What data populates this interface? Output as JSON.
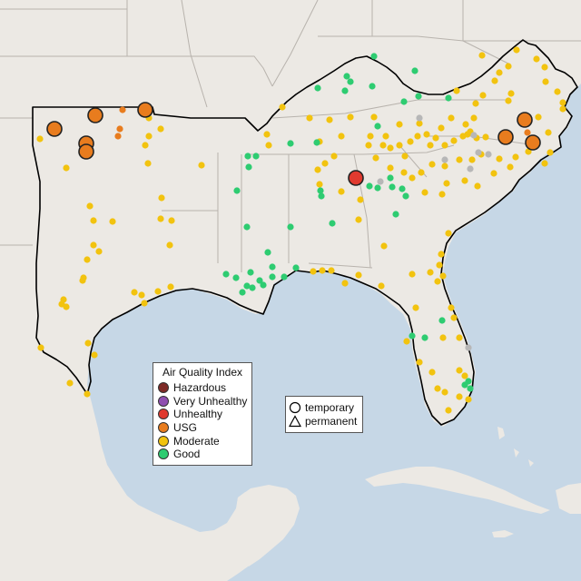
{
  "legend": {
    "title": "Air Quality Index",
    "categories": [
      {
        "label": "Hazardous",
        "color": "#7e2a26"
      },
      {
        "label": "Very Unhealthy",
        "color": "#8f4fb0"
      },
      {
        "label": "Unhealthy",
        "color": "#e03a2f"
      },
      {
        "label": "USG",
        "color": "#e87c1e"
      },
      {
        "label": "Moderate",
        "color": "#f2c30f"
      },
      {
        "label": "Good",
        "color": "#2ecc71"
      }
    ]
  },
  "shape_legend": {
    "items": [
      {
        "label": "temporary",
        "icon": "circle-outline-icon"
      },
      {
        "label": "permanent",
        "icon": "triangle-outline-icon"
      }
    ]
  },
  "colors": {
    "ocean": "#c6d7e6",
    "land": "#ece9e4",
    "land_outside": "#e3ded6",
    "state_border": "#b8b3ad",
    "region_outline": "#000000",
    "unknown_sensor": "#b7b7b7"
  }
}
